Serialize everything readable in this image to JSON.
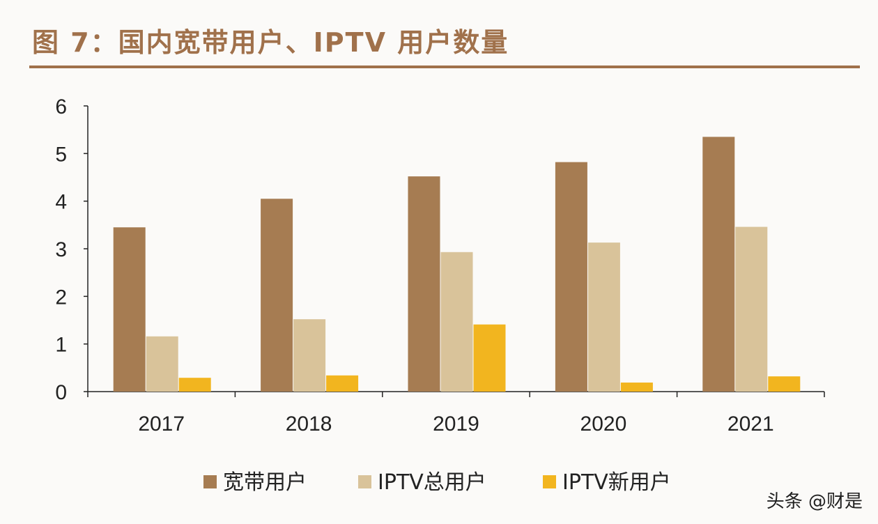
{
  "header": {
    "title": "图 7：国内宽带用户、IPTV 用户数量"
  },
  "watermark": "头条 @财是",
  "colors": {
    "title": "#a0714b",
    "axis": "#222222",
    "series": [
      "#a67c52",
      "#d9c39a",
      "#f2b51f"
    ]
  },
  "chart_data": {
    "type": "bar",
    "title": "",
    "xlabel": "",
    "ylabel": "",
    "categories": [
      "2017",
      "2018",
      "2019",
      "2020",
      "2021"
    ],
    "ylim": [
      0,
      6
    ],
    "yticks": [
      "0",
      "1",
      "2",
      "3",
      "4",
      "5",
      "6"
    ],
    "grid": false,
    "legend_position": "bottom",
    "series": [
      {
        "name": "宽带用户",
        "values": [
          3.45,
          4.05,
          4.52,
          4.82,
          5.35
        ]
      },
      {
        "name": "IPTV总用户",
        "values": [
          1.16,
          1.52,
          2.93,
          3.13,
          3.46
        ]
      },
      {
        "name": "IPTV新用户",
        "values": [
          0.29,
          0.34,
          1.41,
          0.19,
          0.32
        ]
      }
    ]
  }
}
